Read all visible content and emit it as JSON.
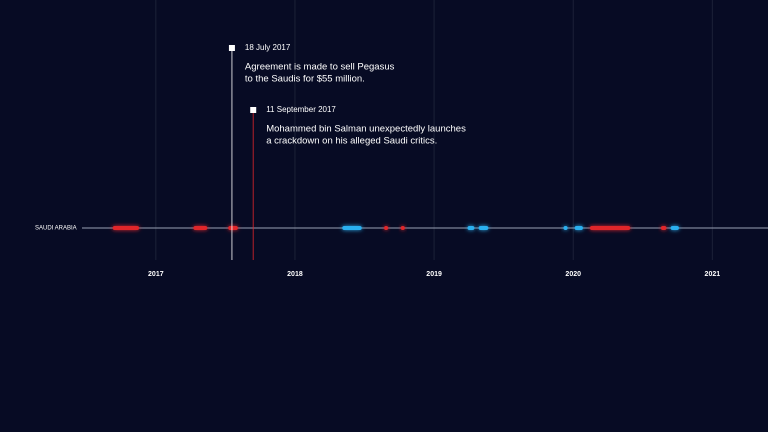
{
  "chart_data": {
    "type": "timeline",
    "categories": [
      "SAUDI ARABIA"
    ],
    "xlim": [
      2015.88,
      2021.4
    ],
    "xticks": [
      2017,
      2018,
      2019,
      2020,
      2021
    ],
    "grid": true,
    "events": [
      {
        "start": 2016.69,
        "end": 2016.88,
        "color": "#e0262b"
      },
      {
        "start": 2017.27,
        "end": 2017.37,
        "color": "#e0262b"
      },
      {
        "start": 2017.52,
        "end": 2017.59,
        "color": "#e0262b"
      },
      {
        "start": 2018.34,
        "end": 2018.48,
        "color": "#2ab0f0"
      },
      {
        "start": 2018.64,
        "end": 2018.67,
        "color": "#e0262b"
      },
      {
        "start": 2018.76,
        "end": 2018.79,
        "color": "#e0262b"
      },
      {
        "start": 2019.24,
        "end": 2019.29,
        "color": "#2ab0f0"
      },
      {
        "start": 2019.32,
        "end": 2019.39,
        "color": "#2ab0f0"
      },
      {
        "start": 2019.93,
        "end": 2019.96,
        "color": "#2ab0f0"
      },
      {
        "start": 2020.01,
        "end": 2020.07,
        "color": "#2ab0f0"
      },
      {
        "start": 2020.12,
        "end": 2020.41,
        "color": "#e0262b"
      },
      {
        "start": 2020.63,
        "end": 2020.67,
        "color": "#e0262b"
      },
      {
        "start": 2020.7,
        "end": 2020.76,
        "color": "#2ab0f0"
      }
    ],
    "annotations": [
      {
        "x": 2017.547,
        "date": "18 July 2017",
        "text": [
          "Agreement is made to sell Pegasus",
          "to the Saudis for $55 million."
        ],
        "color": "#ffffff"
      },
      {
        "x": 2017.7,
        "date": "11 September 2017",
        "text": [
          "Mohammed bin Salman unexpectedly launches",
          "a crackdown on his alleged Saudi critics."
        ],
        "color": "#e0262b"
      }
    ]
  }
}
